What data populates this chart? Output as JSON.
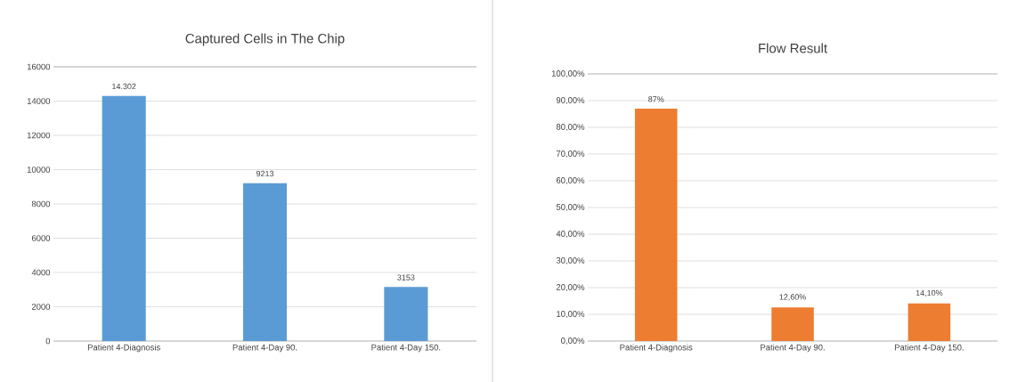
{
  "chart_data": [
    {
      "type": "bar",
      "title": "Captured Cells in The Chip",
      "categories": [
        "Patient 4-Diagnosis",
        "Patient 4-Day 90.",
        "Patient 4-Day 150."
      ],
      "values": [
        14302,
        9213,
        3153
      ],
      "value_labels": [
        "14.302",
        "9213",
        "3153"
      ],
      "color": "#5b9bd5",
      "ylim": [
        0,
        16000
      ],
      "yticks": [
        0,
        2000,
        4000,
        6000,
        8000,
        10000,
        12000,
        14000,
        16000
      ],
      "grid": "y"
    },
    {
      "type": "bar",
      "title": "Flow Result",
      "categories": [
        "Patient 4-Diagnosis",
        "Patient 4-Day 90.",
        "Patient 4-Day 150."
      ],
      "values": [
        87,
        12.6,
        14.1
      ],
      "value_labels": [
        "87%",
        "12,60%",
        "14,10%"
      ],
      "color": "#ed7d31",
      "ylim": [
        0,
        100
      ],
      "yticks": [
        {
          "value": 0,
          "label": "0,00%"
        },
        {
          "value": 10,
          "label": "10,00%"
        },
        {
          "value": 20,
          "label": "20,00%"
        },
        {
          "value": 30,
          "label": "30,00%"
        },
        {
          "value": 40,
          "label": "40,00%"
        },
        {
          "value": 50,
          "label": "50,00%"
        },
        {
          "value": 60,
          "label": "60,00%"
        },
        {
          "value": 70,
          "label": "70,00%"
        },
        {
          "value": 80,
          "label": "80,00%"
        },
        {
          "value": 90,
          "label": "90,00%"
        },
        {
          "value": 100,
          "label": "100,00%"
        }
      ],
      "grid": "y"
    }
  ]
}
